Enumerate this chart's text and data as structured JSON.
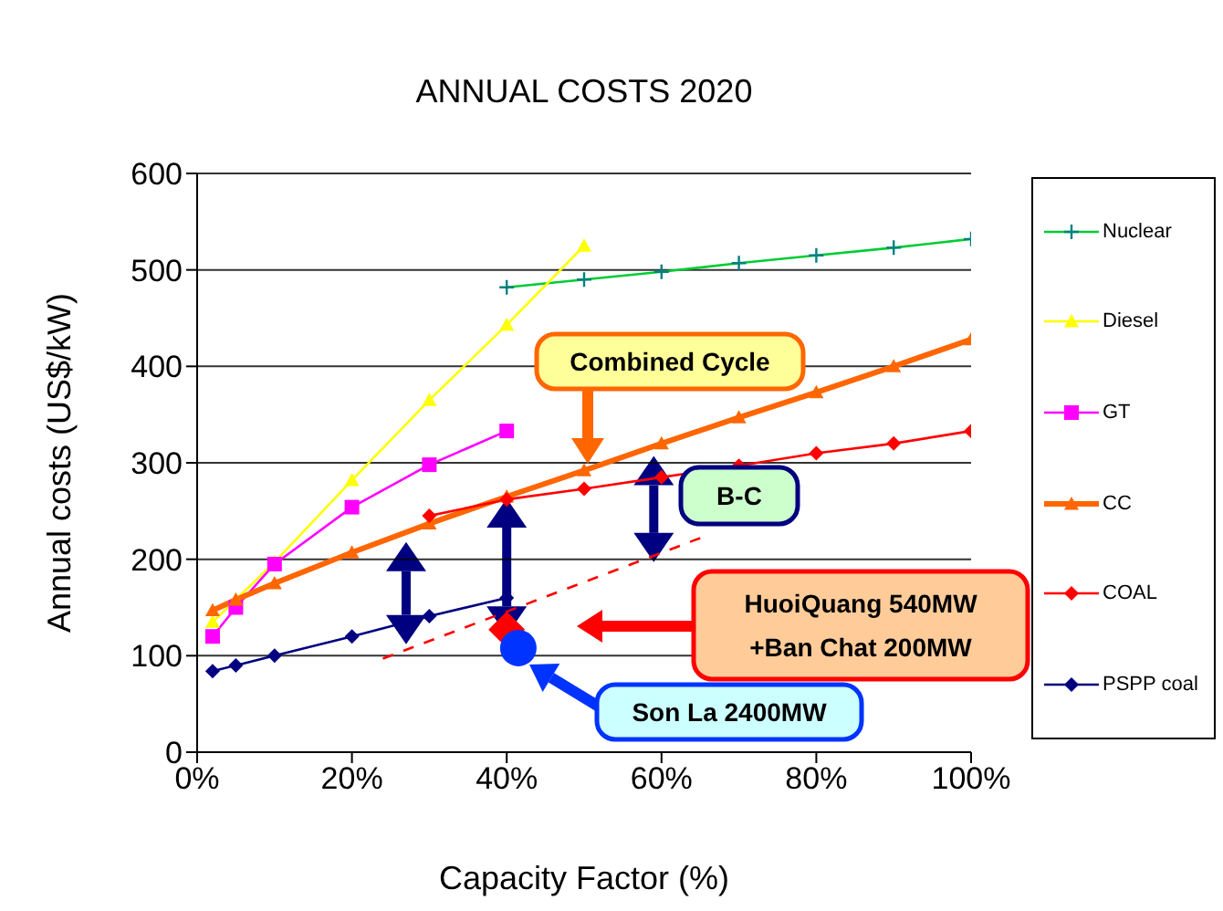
{
  "chart_data": {
    "type": "line",
    "title": "ANNUAL COSTS 2020",
    "xlabel": "Capacity Factor (%)",
    "ylabel": "Annual costs (US$/kW)",
    "xlim": [
      0,
      100
    ],
    "xticks": [
      {
        "value": 0,
        "label": "0%"
      },
      {
        "value": 20,
        "label": "20%"
      },
      {
        "value": 40,
        "label": "40%"
      },
      {
        "value": 60,
        "label": "60%"
      },
      {
        "value": 80,
        "label": "80%"
      },
      {
        "value": 100,
        "label": "100%"
      }
    ],
    "ylim": [
      0,
      600
    ],
    "yticks": [
      0,
      100,
      200,
      300,
      400,
      500,
      600
    ],
    "grid": "y",
    "legend": "right",
    "series": [
      {
        "name": "Nuclear",
        "color": "#00cc33",
        "marker": "cross",
        "x": [
          40,
          50,
          60,
          70,
          80,
          90,
          100
        ],
        "values": [
          482,
          490,
          498,
          507,
          515,
          523,
          532
        ]
      },
      {
        "name": "Diesel",
        "color": "#ffff00",
        "marker": "triangle",
        "x": [
          2,
          5,
          10,
          20,
          30,
          40,
          50
        ],
        "values": [
          135,
          158,
          197,
          282,
          365,
          443,
          525
        ]
      },
      {
        "name": "GT",
        "color": "#ff00ff",
        "marker": "square",
        "x": [
          2,
          5,
          10,
          20,
          30,
          40
        ],
        "values": [
          120,
          150,
          195,
          254,
          298,
          333
        ]
      },
      {
        "name": "CC",
        "color": "#ff6600",
        "marker": "triangle",
        "x": [
          2,
          5,
          10,
          20,
          30,
          40,
          50,
          60,
          70,
          80,
          90,
          100
        ],
        "values": [
          147,
          158,
          175,
          207,
          237,
          265,
          292,
          320,
          347,
          373,
          400,
          428
        ]
      },
      {
        "name": "COAL",
        "color": "#ff0000",
        "marker": "diamond",
        "x": [
          30,
          40,
          50,
          60,
          70,
          80,
          90,
          100
        ],
        "values": [
          245,
          262,
          273,
          285,
          297,
          310,
          320,
          333
        ]
      },
      {
        "name": "PSPP coal",
        "color": "#000080",
        "marker": "diamond",
        "x": [
          2,
          5,
          10,
          20,
          30,
          40
        ],
        "values": [
          84,
          90,
          100,
          120,
          141,
          160
        ]
      },
      {
        "type": "line",
        "color": "#ff0000",
        "marker": "none",
        "line_style": "dashed",
        "x": [
          24,
          65
        ],
        "values": [
          97,
          222
        ]
      },
      {
        "type": "scatter",
        "color": "#ff0000",
        "marker": "diamond",
        "x": [
          40
        ],
        "values": [
          127
        ]
      },
      {
        "type": "scatter",
        "color": "#0033ff",
        "marker": "circle",
        "x": [
          41.5
        ],
        "values": [
          108
        ]
      }
    ],
    "annotations": [
      "Combined Cycle",
      "B-C",
      "HuoiQuang 540MW\n+Ban Chat 200MW",
      "Son La 2400MW"
    ]
  }
}
